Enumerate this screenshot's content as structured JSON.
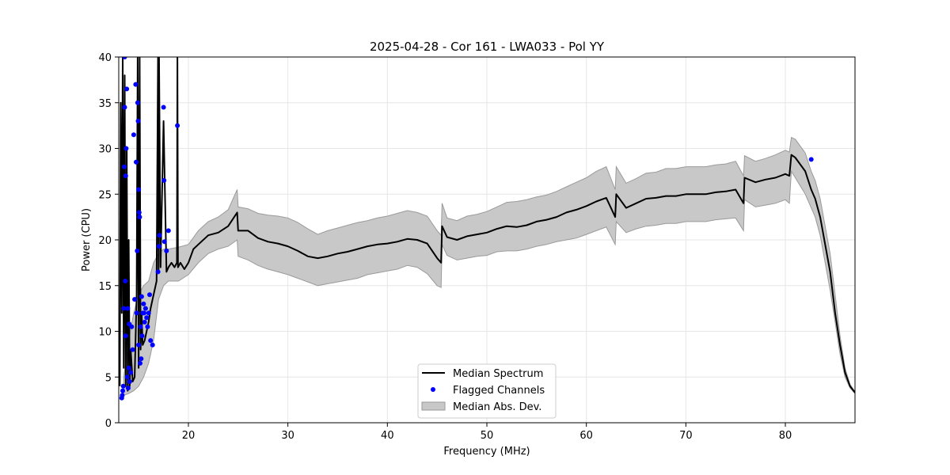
{
  "chart_data": {
    "type": "line",
    "title": "2025-04-28 - Cor 161 - LWA033 - Pol YY",
    "xlabel": "Frequency (MHz)",
    "ylabel": "Power (CPU)",
    "xlim": [
      13,
      87
    ],
    "ylim": [
      0,
      40
    ],
    "xticks": [
      20,
      30,
      40,
      50,
      60,
      70,
      80
    ],
    "yticks": [
      0,
      5,
      10,
      15,
      20,
      25,
      30,
      35,
      40
    ],
    "grid": true,
    "legend_position": "lower-center",
    "colors": {
      "median": "#000000",
      "flagged": "#0000ff",
      "mad_fill": "#c8c8c8",
      "mad_edge": "#9a9a9a",
      "grid": "#e6e6e6"
    },
    "series": [
      {
        "name": "Median Spectrum",
        "kind": "line",
        "x": [
          13.1,
          13.2,
          13.3,
          13.4,
          13.5,
          13.6,
          13.7,
          13.8,
          13.9,
          14.0,
          14.1,
          14.2,
          14.4,
          14.6,
          14.8,
          14.9,
          15.0,
          15.1,
          15.2,
          15.3,
          15.4,
          15.6,
          15.8,
          16.0,
          16.2,
          16.5,
          16.8,
          16.95,
          17.0,
          17.05,
          17.2,
          17.5,
          17.8,
          18.0,
          18.3,
          18.6,
          18.85,
          18.9,
          18.95,
          19.2,
          19.6,
          20.0,
          20.5,
          21.0,
          22.0,
          23.0,
          24.0,
          24.9,
          25.0,
          26.0,
          27.0,
          28.0,
          29.0,
          30.0,
          31.0,
          32.0,
          33.0,
          34.0,
          35.0,
          36.0,
          37.0,
          38.0,
          39.0,
          40.0,
          41.0,
          42.0,
          43.0,
          44.0,
          45.0,
          45.4,
          45.5,
          46.0,
          47.0,
          48.0,
          49.0,
          50.0,
          51.0,
          52.0,
          53.0,
          54.0,
          55.0,
          56.0,
          57.0,
          58.0,
          59.0,
          60.0,
          61.0,
          62.0,
          62.9,
          63.0,
          64.0,
          65.0,
          66.0,
          67.0,
          68.0,
          69.0,
          70.0,
          71.0,
          72.0,
          73.0,
          74.0,
          75.0,
          75.8,
          75.9,
          77.0,
          78.0,
          79.0,
          80.0,
          80.4,
          80.6,
          81.0,
          82.0,
          82.6,
          83.0,
          83.5,
          84.0,
          84.5,
          85.0,
          85.5,
          86.0,
          86.5,
          87.0
        ],
        "y": [
          4.0,
          35.0,
          12.0,
          40.0,
          6.0,
          38.0,
          4.0,
          30.0,
          3.5,
          20.0,
          4.0,
          8.0,
          4.5,
          5.0,
          14.0,
          40.0,
          6.0,
          40.0,
          8.0,
          12.0,
          8.5,
          9.0,
          10.0,
          11.0,
          12.5,
          14.0,
          15.5,
          40.0,
          16.5,
          40.0,
          17.0,
          33.0,
          16.5,
          17.0,
          17.5,
          17.0,
          17.5,
          40.0,
          17.0,
          17.5,
          16.8,
          17.5,
          19.0,
          19.5,
          20.5,
          20.8,
          21.5,
          23.0,
          21.0,
          21.0,
          20.2,
          19.8,
          19.6,
          19.3,
          18.8,
          18.2,
          18.0,
          18.2,
          18.5,
          18.7,
          19.0,
          19.3,
          19.5,
          19.6,
          19.8,
          20.1,
          20.0,
          19.6,
          18.0,
          17.5,
          21.5,
          20.3,
          20.0,
          20.4,
          20.6,
          20.8,
          21.2,
          21.5,
          21.4,
          21.6,
          22.0,
          22.2,
          22.5,
          23.0,
          23.3,
          23.7,
          24.2,
          24.6,
          22.5,
          25.0,
          23.5,
          24.0,
          24.5,
          24.6,
          24.8,
          24.8,
          25.0,
          25.0,
          25.0,
          25.2,
          25.3,
          25.5,
          24.0,
          26.8,
          26.3,
          26.6,
          26.8,
          27.2,
          27.0,
          29.3,
          29.0,
          27.5,
          25.5,
          24.5,
          22.5,
          19.5,
          16.5,
          12.0,
          8.5,
          5.5,
          4.0,
          3.3
        ]
      },
      {
        "name": "Flagged Channels",
        "kind": "scatter",
        "x": [
          13.3,
          13.35,
          13.4,
          13.45,
          13.5,
          13.55,
          13.6,
          13.6,
          13.65,
          13.7,
          13.7,
          13.75,
          13.8,
          13.85,
          13.9,
          13.95,
          14.0,
          14.05,
          14.1,
          14.2,
          14.3,
          14.4,
          14.5,
          14.6,
          14.7,
          14.75,
          14.8,
          14.85,
          14.9,
          14.95,
          15.0,
          15.0,
          15.05,
          15.1,
          15.15,
          15.2,
          15.25,
          15.3,
          15.35,
          15.4,
          15.5,
          15.55,
          15.6,
          15.7,
          15.8,
          15.9,
          16.0,
          16.1,
          16.2,
          16.4,
          16.95,
          17.05,
          17.1,
          17.5,
          17.55,
          17.6,
          17.8,
          18.0,
          18.9,
          82.6
        ],
        "y": [
          2.7,
          3.0,
          3.5,
          4.0,
          12.5,
          28.0,
          34.5,
          40.0,
          15.5,
          9.5,
          27.0,
          30.0,
          36.5,
          5.0,
          12.5,
          3.8,
          6.0,
          10.8,
          4.5,
          5.5,
          10.5,
          8.0,
          31.5,
          13.5,
          37.0,
          28.5,
          12.0,
          18.8,
          35.0,
          33.0,
          25.5,
          8.5,
          23.0,
          22.5,
          6.5,
          10.5,
          7.0,
          13.8,
          9.5,
          12.0,
          13.0,
          12.0,
          11.0,
          12.5,
          11.5,
          10.5,
          12.0,
          14.0,
          9.0,
          8.5,
          16.5,
          19.3,
          20.5,
          34.5,
          26.5,
          19.8,
          18.8,
          21.0,
          32.5,
          28.8
        ]
      },
      {
        "name": "Median Abs. Dev.",
        "kind": "band",
        "x": [
          13.5,
          14.0,
          14.5,
          15.0,
          15.5,
          16.0,
          16.5,
          17.0,
          17.5,
          18.0,
          19.0,
          20.0,
          21.0,
          22.0,
          23.0,
          24.0,
          24.9,
          25.0,
          26.0,
          27.0,
          28.0,
          29.0,
          30.0,
          31.0,
          32.0,
          33.0,
          34.0,
          35.0,
          36.0,
          37.0,
          38.0,
          39.0,
          40.0,
          41.0,
          42.0,
          43.0,
          44.0,
          45.0,
          45.4,
          45.5,
          46.0,
          47.0,
          48.0,
          49.0,
          50.0,
          51.0,
          52.0,
          53.0,
          54.0,
          55.0,
          56.0,
          57.0,
          58.0,
          59.0,
          60.0,
          61.0,
          62.0,
          62.9,
          63.0,
          64.0,
          65.0,
          66.0,
          67.0,
          68.0,
          69.0,
          70.0,
          71.0,
          72.0,
          73.0,
          74.0,
          75.0,
          75.8,
          75.9,
          77.0,
          78.0,
          79.0,
          80.0,
          80.4,
          80.6,
          81.0,
          82.0,
          82.6,
          83.0,
          83.5,
          84.0,
          84.5,
          85.0,
          85.5,
          86.0,
          86.5,
          87.0
        ],
        "lower": [
          3.0,
          3.2,
          3.5,
          4.0,
          5.0,
          6.5,
          9.0,
          13.5,
          15.0,
          15.5,
          15.5,
          16.2,
          17.5,
          18.5,
          19.0,
          19.3,
          20.0,
          18.2,
          17.8,
          17.2,
          16.8,
          16.5,
          16.2,
          15.8,
          15.4,
          15.0,
          15.2,
          15.4,
          15.6,
          15.8,
          16.2,
          16.4,
          16.6,
          16.8,
          17.2,
          17.0,
          16.3,
          15.0,
          14.8,
          19.5,
          18.3,
          17.8,
          18.0,
          18.2,
          18.3,
          18.7,
          18.8,
          18.8,
          19.0,
          19.3,
          19.5,
          19.8,
          20.0,
          20.2,
          20.6,
          21.0,
          21.4,
          19.5,
          22.0,
          20.8,
          21.2,
          21.5,
          21.6,
          21.8,
          21.8,
          22.0,
          22.0,
          22.0,
          22.2,
          22.3,
          22.4,
          21.0,
          24.4,
          23.6,
          23.8,
          24.0,
          24.4,
          24.0,
          27.5,
          26.8,
          25.0,
          23.5,
          22.5,
          20.5,
          17.5,
          14.5,
          11.0,
          7.5,
          5.0,
          3.8,
          3.2
        ],
        "upper": [
          5.0,
          9.0,
          12.0,
          14.0,
          15.0,
          15.5,
          17.5,
          18.5,
          19.0,
          19.0,
          19.2,
          19.5,
          21.0,
          22.0,
          22.5,
          23.3,
          25.5,
          23.6,
          23.4,
          22.9,
          22.7,
          22.6,
          22.4,
          21.9,
          21.2,
          20.6,
          21.0,
          21.3,
          21.6,
          21.9,
          22.1,
          22.4,
          22.6,
          22.9,
          23.2,
          23.0,
          22.6,
          21.0,
          20.5,
          24.0,
          22.4,
          22.1,
          22.6,
          22.8,
          23.1,
          23.6,
          24.1,
          24.2,
          24.4,
          24.7,
          24.9,
          25.3,
          25.8,
          26.3,
          26.8,
          27.5,
          28.0,
          25.5,
          28.0,
          26.2,
          26.7,
          27.3,
          27.4,
          27.8,
          27.8,
          28.0,
          28.0,
          28.0,
          28.2,
          28.3,
          28.6,
          27.0,
          29.2,
          28.6,
          28.9,
          29.3,
          29.8,
          29.6,
          31.2,
          31.0,
          29.5,
          27.5,
          26.5,
          24.5,
          21.5,
          18.5,
          14.0,
          9.5,
          6.0,
          4.2,
          3.4
        ]
      }
    ]
  }
}
